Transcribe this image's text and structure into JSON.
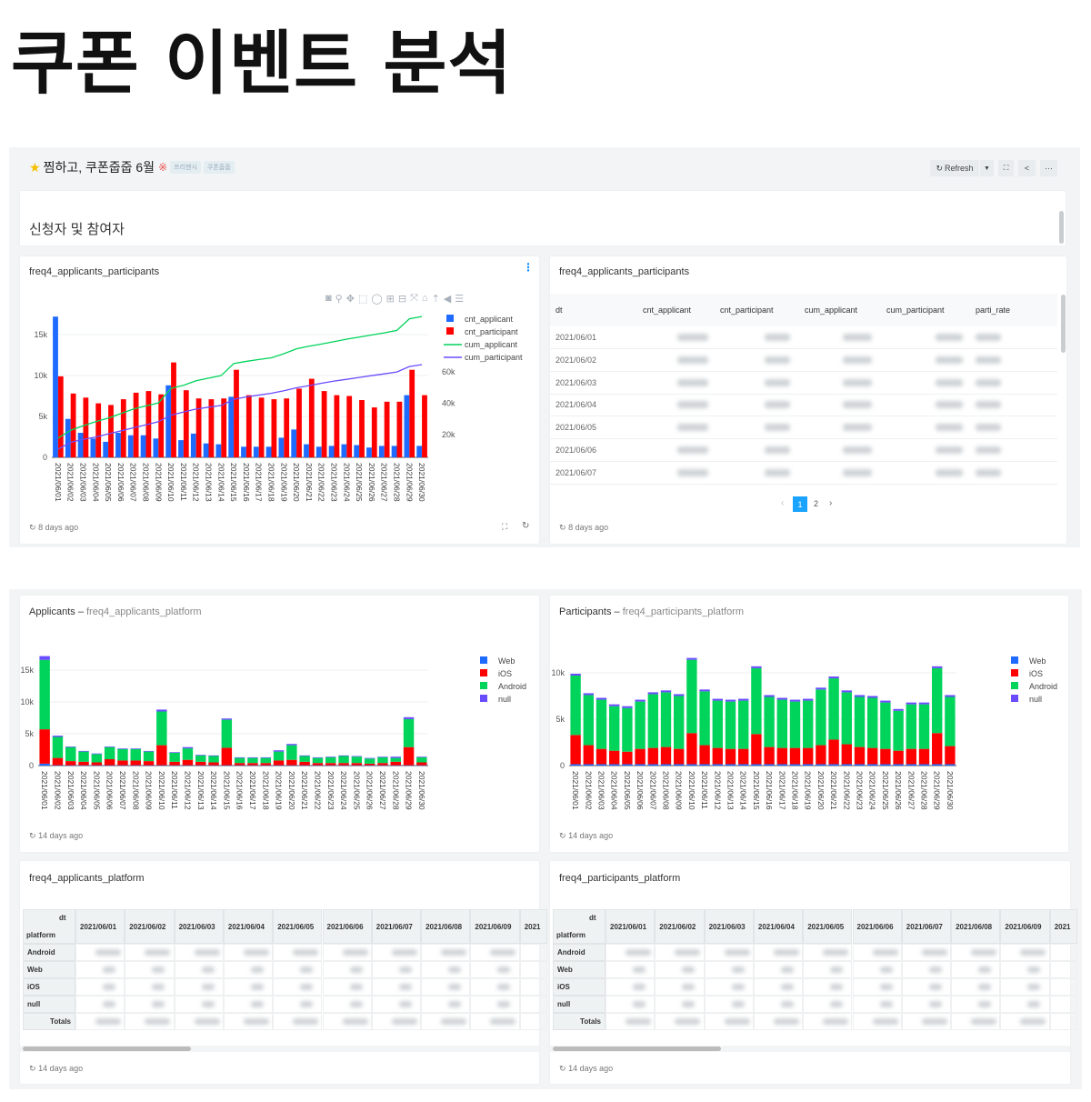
{
  "page_title": "쿠폰 이벤트 분석",
  "dashboard": {
    "title": "찜하고, 쿠폰줍줍 6월",
    "tags": [
      "프리젠시",
      "쿠폰줍줍"
    ],
    "refresh_label": "Refresh",
    "section_title": "신청자 및 참여자"
  },
  "chart_toolbar_icons": [
    "camera-icon",
    "zoom-icon",
    "pan-icon",
    "box-select-icon",
    "lasso-icon",
    "zoom-in-icon",
    "zoom-out-icon",
    "autoscale-icon",
    "home-icon",
    "spike-lines-icon",
    "hover-closest-icon",
    "hover-compare-icon"
  ],
  "cards": {
    "combo": {
      "title": "freq4_applicants_participants",
      "footer": "8 days ago"
    },
    "table": {
      "title": "freq4_applicants_participants",
      "footer": "8 days ago",
      "columns": [
        "dt",
        "cnt_applicant",
        "cnt_participant",
        "cum_applicant",
        "cum_participant",
        "parti_rate"
      ],
      "rows": [
        "2021/06/01",
        "2021/06/02",
        "2021/06/03",
        "2021/06/04",
        "2021/06/05",
        "2021/06/06",
        "2021/06/07"
      ],
      "pages": [
        "1",
        "2"
      ],
      "current_page": "1"
    },
    "app_chart": {
      "title": "Applicants",
      "subtitle": "freq4_applicants_platform",
      "footer": "14 days ago"
    },
    "part_chart": {
      "title": "Participants",
      "subtitle": "freq4_participants_platform",
      "footer": "14 days ago"
    },
    "app_pivot": {
      "title": "freq4_applicants_platform",
      "footer": "14 days ago",
      "col_header": "dt",
      "row_header": "platform",
      "columns": [
        "2021/06/01",
        "2021/06/02",
        "2021/06/03",
        "2021/06/04",
        "2021/06/05",
        "2021/06/06",
        "2021/06/07",
        "2021/06/08",
        "2021/06/09",
        "2021"
      ],
      "rows": [
        "Android",
        "Web",
        "iOS",
        "null"
      ],
      "totals_label": "Totals"
    },
    "part_pivot": {
      "title": "freq4_participants_platform",
      "footer": "14 days ago",
      "col_header": "dt",
      "row_header": "platform",
      "columns": [
        "2021/06/01",
        "2021/06/02",
        "2021/06/03",
        "2021/06/04",
        "2021/06/05",
        "2021/06/06",
        "2021/06/07",
        "2021/06/08",
        "2021/06/09",
        "2021"
      ],
      "rows": [
        "Android",
        "Web",
        "iOS",
        "null"
      ],
      "totals_label": "Totals"
    }
  },
  "colors": {
    "blue": "#1f6bff",
    "red": "#ff0000",
    "green": "#00d45a",
    "purple": "#6a4cff",
    "accent": "#1890ff"
  },
  "chart_data": [
    {
      "type": "bar+line",
      "categories": [
        "2021/06/01",
        "2021/06/02",
        "2021/06/03",
        "2021/06/04",
        "2021/06/05",
        "2021/06/06",
        "2021/06/07",
        "2021/06/08",
        "2021/06/09",
        "2021/06/10",
        "2021/06/11",
        "2021/06/12",
        "2021/06/13",
        "2021/06/14",
        "2021/06/15",
        "2021/06/16",
        "2021/06/17",
        "2021/06/18",
        "2021/06/19",
        "2021/06/20",
        "2021/06/21",
        "2021/06/22",
        "2021/06/23",
        "2021/06/24",
        "2021/06/25",
        "2021/06/26",
        "2021/06/27",
        "2021/06/28",
        "2021/06/29",
        "2021/06/30"
      ],
      "yticks": [
        "0",
        "5k",
        "10k",
        "15k"
      ],
      "y2ticks": [
        "20k",
        "40k",
        "60k"
      ],
      "ylim": [
        0,
        17500
      ],
      "y2lim": [
        5400,
        97000
      ],
      "legend": "top-right",
      "series": [
        {
          "name": "cnt_applicant",
          "kind": "bar",
          "axis": "y",
          "color": "#1f6bff",
          "values": [
            17200,
            4700,
            3000,
            2300,
            1900,
            3000,
            2700,
            2700,
            2300,
            8800,
            2100,
            2900,
            1700,
            1600,
            7400,
            1300,
            1300,
            1300,
            2400,
            3400,
            1600,
            1300,
            1400,
            1600,
            1500,
            1200,
            1400,
            1400,
            7600,
            1400
          ]
        },
        {
          "name": "cnt_participant",
          "kind": "bar",
          "axis": "y",
          "color": "#ff0000",
          "values": [
            9900,
            7800,
            7300,
            6600,
            6400,
            7100,
            7900,
            8100,
            7700,
            11600,
            8200,
            7200,
            7100,
            7200,
            10700,
            7600,
            7300,
            7100,
            7200,
            8400,
            9600,
            8100,
            7600,
            7500,
            7000,
            6100,
            6800,
            6800,
            10700,
            7600
          ]
        },
        {
          "name": "cum_applicant",
          "kind": "line",
          "axis": "y2",
          "color": "#00d45a",
          "values": [
            17700,
            22700,
            25600,
            28200,
            30500,
            33400,
            36300,
            38300,
            40200,
            49500,
            51500,
            54400,
            56100,
            57700,
            65400,
            66800,
            68000,
            69100,
            71700,
            74800,
            76500,
            77900,
            79400,
            81000,
            82300,
            83700,
            85000,
            86600,
            94000,
            95500
          ]
        },
        {
          "name": "cum_participant",
          "kind": "line",
          "axis": "y2",
          "color": "#6a4cff",
          "values": [
            10700,
            15000,
            16900,
            18400,
            20400,
            22300,
            24300,
            26200,
            28200,
            32400,
            34400,
            36300,
            37500,
            38600,
            42500,
            44100,
            45200,
            46400,
            48000,
            49900,
            51300,
            52800,
            54200,
            55300,
            56500,
            57700,
            58800,
            60000,
            63500,
            64700
          ]
        }
      ]
    },
    {
      "type": "bar-stacked",
      "title": "Applicants",
      "categories": [
        "2021/06/01",
        "2021/06/02",
        "2021/06/03",
        "2021/06/04",
        "2021/06/05",
        "2021/06/06",
        "2021/06/07",
        "2021/06/08",
        "2021/06/09",
        "2021/06/10",
        "2021/06/11",
        "2021/06/12",
        "2021/06/13",
        "2021/06/14",
        "2021/06/15",
        "2021/06/16",
        "2021/06/17",
        "2021/06/18",
        "2021/06/19",
        "2021/06/20",
        "2021/06/21",
        "2021/06/22",
        "2021/06/23",
        "2021/06/24",
        "2021/06/25",
        "2021/06/26",
        "2021/06/27",
        "2021/06/28",
        "2021/06/29",
        "2021/06/30"
      ],
      "yticks": [
        "0",
        "5k",
        "10k",
        "15k"
      ],
      "ylim": [
        0,
        18500
      ],
      "legend": "top-right",
      "series": [
        {
          "name": "Web",
          "color": "#1f6bff",
          "values": [
            300,
            50,
            50,
            50,
            50,
            50,
            50,
            50,
            50,
            50,
            50,
            50,
            50,
            50,
            50,
            50,
            50,
            50,
            50,
            50,
            50,
            50,
            50,
            50,
            50,
            50,
            50,
            50,
            50,
            50
          ]
        },
        {
          "name": "iOS",
          "color": "#ff0000",
          "values": [
            5400,
            1150,
            650,
            550,
            450,
            950,
            750,
            750,
            650,
            3150,
            550,
            850,
            550,
            450,
            2750,
            350,
            350,
            350,
            750,
            850,
            550,
            350,
            350,
            350,
            350,
            250,
            350,
            550,
            2850,
            450
          ]
        },
        {
          "name": "Android",
          "color": "#00d45a",
          "values": [
            10900,
            3300,
            2200,
            1600,
            1300,
            1900,
            1800,
            1800,
            1500,
            5300,
            1400,
            1800,
            1000,
            1000,
            4400,
            800,
            800,
            800,
            1400,
            2300,
            900,
            800,
            900,
            1100,
            1000,
            800,
            900,
            600,
            4400,
            800
          ]
        },
        {
          "name": "null",
          "color": "#6a4cff",
          "values": [
            600,
            200,
            100,
            100,
            100,
            100,
            100,
            100,
            100,
            300,
            100,
            200,
            100,
            100,
            200,
            100,
            100,
            100,
            200,
            200,
            100,
            100,
            100,
            100,
            100,
            100,
            100,
            200,
            300,
            100
          ]
        }
      ]
    },
    {
      "type": "bar-stacked",
      "title": "Participants",
      "categories": [
        "2021/06/01",
        "2021/06/02",
        "2021/06/03",
        "2021/06/04",
        "2021/06/05",
        "2021/06/06",
        "2021/06/07",
        "2021/06/08",
        "2021/06/09",
        "2021/06/10",
        "2021/06/11",
        "2021/06/12",
        "2021/06/13",
        "2021/06/14",
        "2021/06/15",
        "2021/06/16",
        "2021/06/17",
        "2021/06/18",
        "2021/06/19",
        "2021/06/20",
        "2021/06/21",
        "2021/06/22",
        "2021/06/23",
        "2021/06/24",
        "2021/06/25",
        "2021/06/26",
        "2021/06/27",
        "2021/06/28",
        "2021/06/29",
        "2021/06/30"
      ],
      "yticks": [
        "0",
        "5k",
        "10k"
      ],
      "ylim": [
        0,
        12300
      ],
      "legend": "top-right",
      "series": [
        {
          "name": "Web",
          "color": "#1f6bff",
          "values": [
            150,
            150,
            150,
            150,
            150,
            150,
            150,
            150,
            150,
            150,
            150,
            150,
            150,
            150,
            150,
            150,
            150,
            150,
            150,
            150,
            150,
            150,
            150,
            150,
            150,
            150,
            150,
            150,
            150,
            150
          ]
        },
        {
          "name": "iOS",
          "color": "#ff0000",
          "values": [
            3150,
            2050,
            1650,
            1450,
            1350,
            1650,
            1750,
            1850,
            1650,
            3350,
            2050,
            1750,
            1650,
            1650,
            3250,
            1850,
            1750,
            1750,
            1750,
            2050,
            2650,
            2150,
            1850,
            1750,
            1650,
            1450,
            1650,
            1650,
            3350,
            1950
          ]
        },
        {
          "name": "Android",
          "color": "#00d45a",
          "values": [
            6400,
            5400,
            5300,
            4800,
            4700,
            5100,
            5800,
            5900,
            5700,
            7900,
            5800,
            5100,
            5100,
            5200,
            7100,
            5400,
            5200,
            5000,
            5100,
            6000,
            6600,
            5600,
            5400,
            5400,
            5000,
            4300,
            4800,
            4800,
            7000,
            5300
          ]
        },
        {
          "name": "null",
          "color": "#6a4cff",
          "values": [
            200,
            200,
            200,
            200,
            200,
            200,
            200,
            200,
            200,
            200,
            200,
            200,
            200,
            200,
            200,
            200,
            200,
            200,
            200,
            200,
            200,
            200,
            200,
            200,
            200,
            200,
            200,
            200,
            200,
            200
          ]
        }
      ]
    }
  ]
}
